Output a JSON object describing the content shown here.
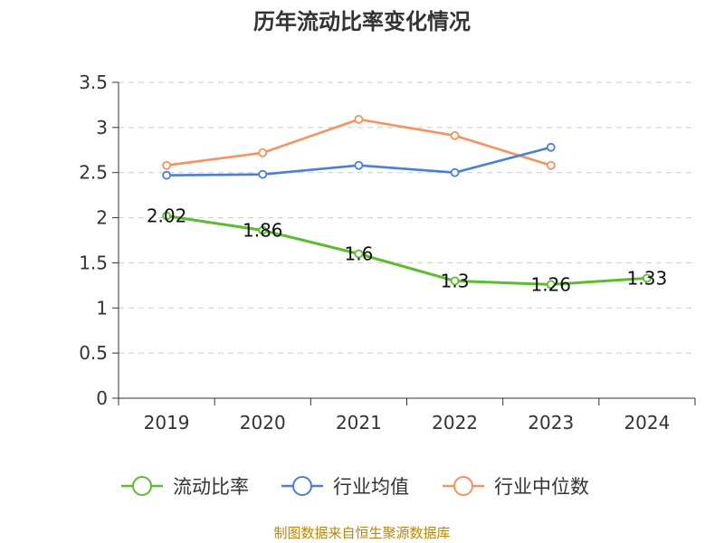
{
  "title": "历年流动比率变化情况",
  "source": "制图数据来自恒生聚源数据库",
  "chart_data": {
    "type": "line",
    "categories": [
      "2019",
      "2020",
      "2021",
      "2022",
      "2023",
      "2024"
    ],
    "ylim": [
      0,
      3.5
    ],
    "yticks": [
      "0",
      "0.5",
      "1",
      "1.5",
      "2",
      "2.5",
      "3",
      "3.5"
    ],
    "grid": true,
    "legend_position": "bottom",
    "series": [
      {
        "name": "流动比率",
        "color": "#5dbb2f",
        "values": [
          2.02,
          1.86,
          1.6,
          1.3,
          1.26,
          1.33
        ],
        "labels": [
          "2.02",
          "1.86",
          "1.6",
          "1.3",
          "1.26",
          "1.33"
        ]
      },
      {
        "name": "行业均值",
        "color": "#4a7fd8",
        "values": [
          2.47,
          2.48,
          2.58,
          2.5,
          2.78,
          null
        ]
      },
      {
        "name": "行业中位数",
        "color": "#f5925e",
        "values": [
          2.58,
          2.72,
          3.09,
          2.91,
          2.58,
          null
        ]
      }
    ]
  }
}
